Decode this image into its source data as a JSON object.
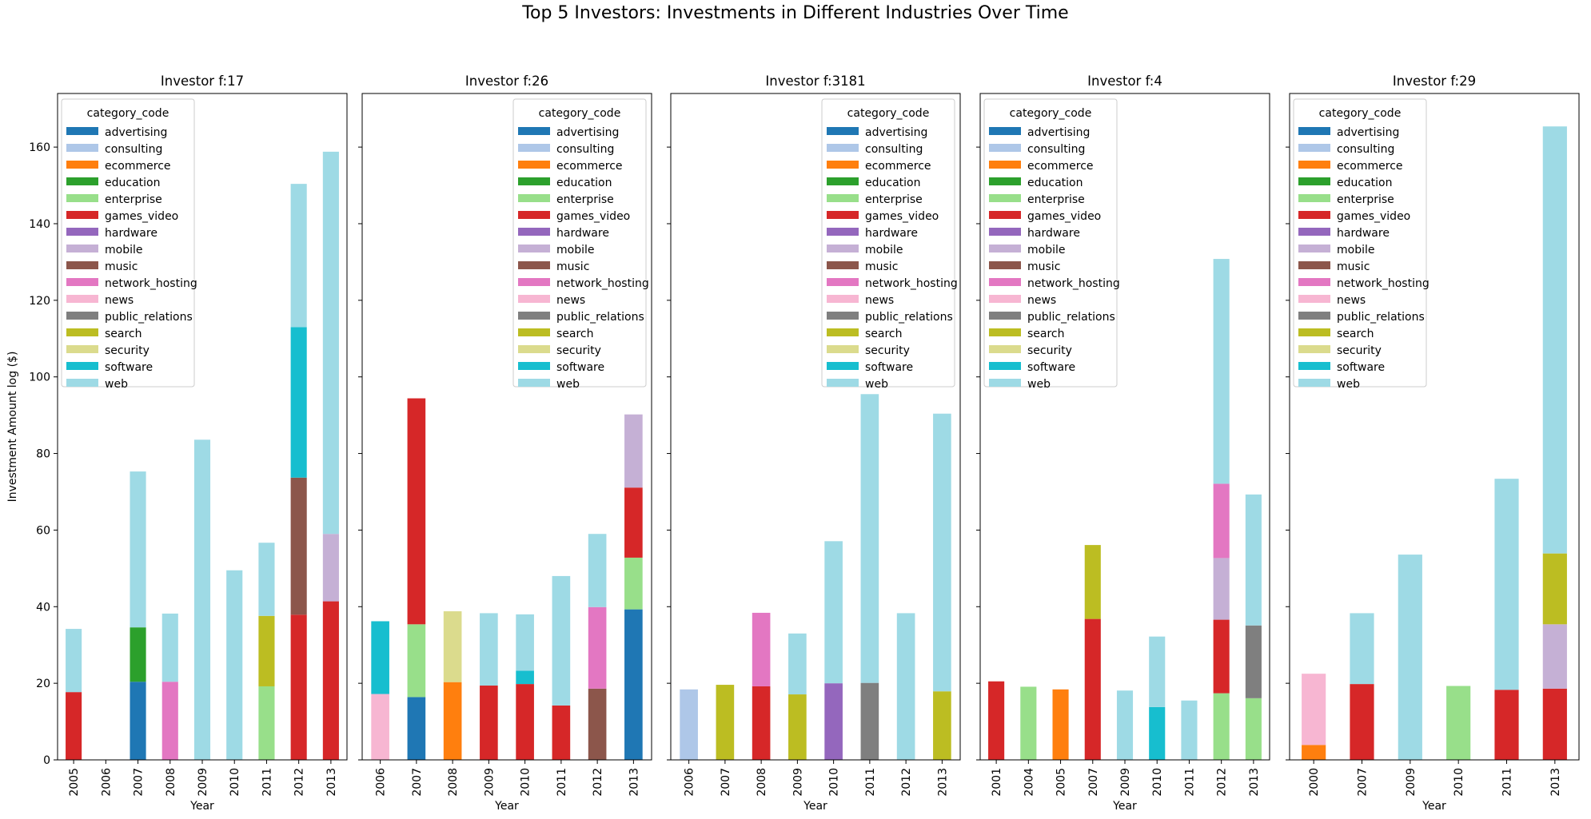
{
  "figure_title": "Top 5 Investors: Investments in Different Industries Over Time",
  "chart_data": {
    "type": "bar",
    "stacked": true,
    "ylabel": "Investment Amount log ($)",
    "xlabel": "Year",
    "ylim": [
      0,
      174
    ],
    "yticks": [
      0,
      20,
      40,
      60,
      80,
      100,
      120,
      140,
      160
    ],
    "legend_title": "category_code",
    "categories_legend": [
      "advertising",
      "consulting",
      "ecommerce",
      "education",
      "enterprise",
      "games_video",
      "hardware",
      "mobile",
      "music",
      "network_hosting",
      "news",
      "public_relations",
      "search",
      "security",
      "software",
      "web"
    ],
    "colors": {
      "advertising": "#1f77b4",
      "consulting": "#aec7e8",
      "ecommerce": "#ff7f0e",
      "education": "#2ca02c",
      "enterprise": "#98df8a",
      "games_video": "#d62728",
      "hardware": "#9467bd",
      "mobile": "#c5b0d5",
      "music": "#8c564b",
      "network_hosting": "#e377c2",
      "news": "#f7b6d2",
      "public_relations": "#7f7f7f",
      "search": "#bcbd22",
      "security": "#dbdb8d",
      "software": "#17becf",
      "web": "#9edae5"
    },
    "panels": [
      {
        "title": "Investor f:17",
        "legend_position": "upper-left",
        "years": [
          "2005",
          "2006",
          "2007",
          "2008",
          "2009",
          "2010",
          "2011",
          "2012",
          "2013"
        ],
        "stacks": [
          [
            {
              "category": "games_video",
              "value": 17.7
            },
            {
              "category": "web",
              "value": 16.5
            }
          ],
          [],
          [
            {
              "category": "advertising",
              "value": 20.4
            },
            {
              "category": "education",
              "value": 14.2
            },
            {
              "category": "web",
              "value": 40.7
            }
          ],
          [
            {
              "category": "network_hosting",
              "value": 20.4
            },
            {
              "category": "web",
              "value": 17.8
            }
          ],
          [
            {
              "category": "web",
              "value": 83.6
            }
          ],
          [
            {
              "category": "web",
              "value": 49.5
            }
          ],
          [
            {
              "category": "enterprise",
              "value": 19.2
            },
            {
              "category": "search",
              "value": 18.4
            },
            {
              "category": "web",
              "value": 19.1
            }
          ],
          [
            {
              "category": "games_video",
              "value": 37.9
            },
            {
              "category": "music",
              "value": 35.8
            },
            {
              "category": "software",
              "value": 39.3
            },
            {
              "category": "web",
              "value": 37.4
            }
          ],
          [
            {
              "category": "games_video",
              "value": 41.4
            },
            {
              "category": "mobile",
              "value": 17.6
            },
            {
              "category": "web",
              "value": 99.8
            }
          ]
        ]
      },
      {
        "title": "Investor f:26",
        "legend_position": "upper-right",
        "years": [
          "2006",
          "2007",
          "2008",
          "2009",
          "2010",
          "2011",
          "2012",
          "2013"
        ],
        "stacks": [
          [
            {
              "category": "news",
              "value": 17.2
            },
            {
              "category": "software",
              "value": 19.0
            }
          ],
          [
            {
              "category": "advertising",
              "value": 16.4
            },
            {
              "category": "enterprise",
              "value": 19.0
            },
            {
              "category": "games_video",
              "value": 59.0
            }
          ],
          [
            {
              "category": "ecommerce",
              "value": 20.3
            },
            {
              "category": "security",
              "value": 18.5
            }
          ],
          [
            {
              "category": "games_video",
              "value": 19.4
            },
            {
              "category": "web",
              "value": 18.9
            }
          ],
          [
            {
              "category": "games_video",
              "value": 19.8
            },
            {
              "category": "software",
              "value": 3.5
            },
            {
              "category": "web",
              "value": 14.7
            }
          ],
          [
            {
              "category": "games_video",
              "value": 14.2
            },
            {
              "category": "web",
              "value": 33.8
            }
          ],
          [
            {
              "category": "music",
              "value": 18.6
            },
            {
              "category": "network_hosting",
              "value": 21.3
            },
            {
              "category": "web",
              "value": 19.1
            }
          ],
          [
            {
              "category": "advertising",
              "value": 39.3
            },
            {
              "category": "enterprise",
              "value": 13.5
            },
            {
              "category": "games_video",
              "value": 18.3
            },
            {
              "category": "mobile",
              "value": 19.1
            }
          ]
        ]
      },
      {
        "title": "Investor f:3181",
        "legend_position": "upper-right",
        "years": [
          "2006",
          "2007",
          "2008",
          "2009",
          "2010",
          "2011",
          "2012",
          "2013"
        ],
        "stacks": [
          [
            {
              "category": "consulting",
              "value": 18.4
            }
          ],
          [
            {
              "category": "search",
              "value": 19.6
            }
          ],
          [
            {
              "category": "games_video",
              "value": 19.2
            },
            {
              "category": "network_hosting",
              "value": 19.2
            }
          ],
          [
            {
              "category": "search",
              "value": 17.1
            },
            {
              "category": "web",
              "value": 15.9
            }
          ],
          [
            {
              "category": "hardware",
              "value": 20.0
            },
            {
              "category": "web",
              "value": 37.1
            }
          ],
          [
            {
              "category": "public_relations",
              "value": 20.1
            },
            {
              "category": "web",
              "value": 75.4
            }
          ],
          [
            {
              "category": "web",
              "value": 38.3
            }
          ],
          [
            {
              "category": "search",
              "value": 17.9
            },
            {
              "category": "web",
              "value": 72.5
            }
          ]
        ]
      },
      {
        "title": "Investor f:4",
        "legend_position": "upper-left",
        "years": [
          "2001",
          "2004",
          "2005",
          "2007",
          "2009",
          "2010",
          "2011",
          "2012",
          "2013"
        ],
        "stacks": [
          [
            {
              "category": "games_video",
              "value": 20.5
            }
          ],
          [
            {
              "category": "enterprise",
              "value": 19.1
            }
          ],
          [
            {
              "category": "ecommerce",
              "value": 18.4
            }
          ],
          [
            {
              "category": "games_video",
              "value": 36.8
            },
            {
              "category": "search",
              "value": 19.3
            }
          ],
          [
            {
              "category": "web",
              "value": 18.1
            }
          ],
          [
            {
              "category": "software",
              "value": 13.8
            },
            {
              "category": "web",
              "value": 18.4
            }
          ],
          [
            {
              "category": "web",
              "value": 15.5
            }
          ],
          [
            {
              "category": "enterprise",
              "value": 17.4
            },
            {
              "category": "games_video",
              "value": 19.2
            },
            {
              "category": "mobile",
              "value": 16.1
            },
            {
              "category": "network_hosting",
              "value": 19.4
            },
            {
              "category": "web",
              "value": 58.7
            }
          ],
          [
            {
              "category": "enterprise",
              "value": 16.1
            },
            {
              "category": "public_relations",
              "value": 19.0
            },
            {
              "category": "web",
              "value": 34.2
            }
          ]
        ]
      },
      {
        "title": "Investor f:29",
        "legend_position": "upper-left",
        "years": [
          "2000",
          "2007",
          "2009",
          "2010",
          "2011",
          "2013"
        ],
        "stacks": [
          [
            {
              "category": "ecommerce",
              "value": 3.9
            },
            {
              "category": "news",
              "value": 18.6
            }
          ],
          [
            {
              "category": "games_video",
              "value": 19.8
            },
            {
              "category": "web",
              "value": 18.5
            }
          ],
          [
            {
              "category": "web",
              "value": 53.6
            }
          ],
          [
            {
              "category": "enterprise",
              "value": 19.3
            }
          ],
          [
            {
              "category": "games_video",
              "value": 18.3
            },
            {
              "category": "web",
              "value": 55.1
            }
          ],
          [
            {
              "category": "games_video",
              "value": 18.6
            },
            {
              "category": "mobile",
              "value": 16.8
            },
            {
              "category": "search",
              "value": 18.5
            },
            {
              "category": "web",
              "value": 111.5
            }
          ]
        ]
      }
    ]
  }
}
